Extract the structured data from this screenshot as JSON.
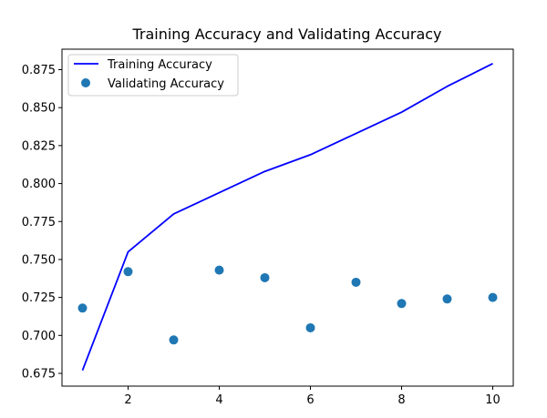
{
  "chart_data": {
    "type": "line",
    "title": "Training Accuracy and Validating Accuracy",
    "xlabel": "",
    "ylabel": "",
    "xlim": [
      0.55,
      10.45
    ],
    "ylim": [
      0.6666,
      0.8885
    ],
    "xticks": [
      2,
      4,
      6,
      8,
      10
    ],
    "xtick_labels": [
      "2",
      "4",
      "6",
      "8",
      "10"
    ],
    "yticks": [
      0.675,
      0.7,
      0.725,
      0.75,
      0.775,
      0.8,
      0.825,
      0.85,
      0.875
    ],
    "ytick_labels": [
      "0.675",
      "0.700",
      "0.725",
      "0.750",
      "0.775",
      "0.800",
      "0.825",
      "0.850",
      "0.875"
    ],
    "grid": false,
    "legend_position": "top-left",
    "x": [
      1,
      2,
      3,
      4,
      5,
      6,
      7,
      8,
      9,
      10
    ],
    "series": [
      {
        "name": "Training Accuracy",
        "style": "line",
        "color": "#0000ff",
        "values": [
          0.677,
          0.755,
          0.78,
          0.794,
          0.808,
          0.819,
          0.833,
          0.847,
          0.864,
          0.879
        ]
      },
      {
        "name": "Validating Accuracy",
        "style": "markers",
        "color": "#1f77b4",
        "values": [
          0.718,
          0.742,
          0.697,
          0.743,
          0.738,
          0.705,
          0.735,
          0.721,
          0.724,
          0.725
        ]
      }
    ]
  }
}
